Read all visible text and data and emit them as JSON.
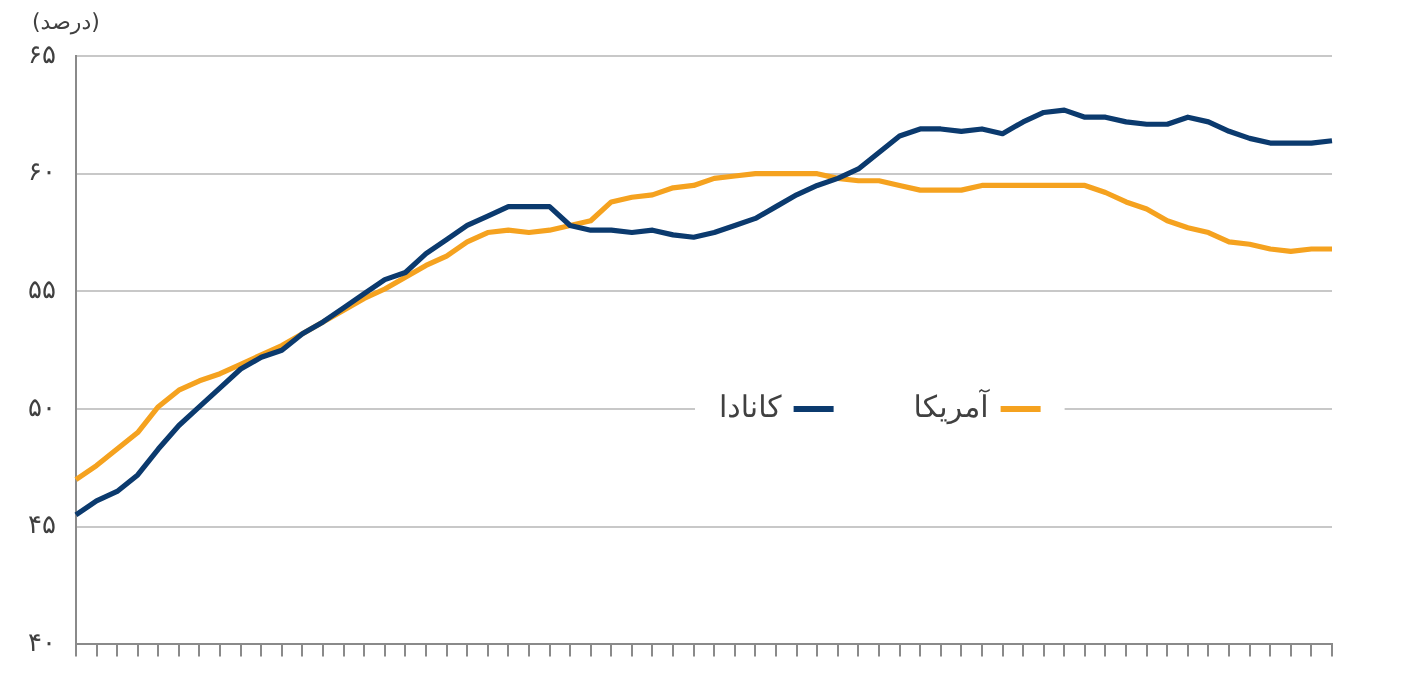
{
  "chart_data": {
    "type": "line",
    "ylabel": "(درصد)",
    "categories": [
      null,
      null,
      null,
      null,
      null,
      null,
      null,
      null,
      null,
      null,
      null,
      null,
      null,
      null,
      null,
      null,
      null,
      null,
      null,
      null,
      null,
      null,
      null,
      null,
      null,
      null,
      null,
      null,
      null,
      null,
      null,
      null,
      null,
      null,
      null,
      null,
      null,
      null,
      null,
      null,
      null,
      null,
      null,
      null,
      null,
      null,
      null,
      null,
      null,
      null,
      null,
      null,
      null,
      null,
      null,
      null,
      null,
      null,
      null,
      null,
      null,
      null
    ],
    "series": [
      {
        "name": "کانادا",
        "color": "#0b3a6e",
        "values": [
          45.5,
          46.1,
          46.5,
          47.2,
          48.3,
          49.3,
          50.1,
          50.9,
          51.7,
          52.2,
          52.5,
          53.2,
          53.7,
          54.3,
          54.9,
          55.5,
          55.8,
          56.6,
          57.2,
          57.8,
          58.2,
          58.6,
          58.6,
          58.6,
          57.8,
          57.6,
          57.6,
          57.5,
          57.6,
          57.4,
          57.3,
          57.5,
          57.8,
          58.1,
          58.6,
          59.1,
          59.5,
          59.8,
          60.2,
          60.9,
          61.6,
          61.9,
          61.9,
          61.8,
          61.9,
          61.7,
          62.2,
          62.6,
          62.7,
          62.4,
          62.4,
          62.2,
          62.1,
          62.1,
          62.4,
          62.2,
          61.8,
          61.5,
          61.3,
          61.3,
          61.3,
          61.4
        ]
      },
      {
        "name": "آمریکا",
        "color": "#f5a21f",
        "values": [
          47.0,
          47.6,
          48.3,
          49.0,
          50.1,
          50.8,
          51.2,
          51.5,
          51.9,
          52.3,
          52.7,
          53.2,
          53.7,
          54.2,
          54.7,
          55.1,
          55.6,
          56.1,
          56.5,
          57.1,
          57.5,
          57.6,
          57.5,
          57.6,
          57.8,
          58.0,
          58.8,
          59.0,
          59.1,
          59.4,
          59.5,
          59.8,
          59.9,
          60.0,
          60.0,
          60.0,
          60.0,
          59.8,
          59.7,
          59.7,
          59.5,
          59.3,
          59.3,
          59.3,
          59.5,
          59.5,
          59.5,
          59.5,
          59.5,
          59.5,
          59.2,
          58.8,
          58.5,
          58.0,
          57.7,
          57.5,
          57.1,
          57.0,
          56.8,
          56.7,
          56.8,
          56.8
        ]
      }
    ],
    "ylim": [
      40,
      65
    ],
    "yticks": [
      {
        "value": 40,
        "label": "۴۰"
      },
      {
        "value": 45,
        "label": "۴۵"
      },
      {
        "value": 50,
        "label": "۵۰"
      },
      {
        "value": 55,
        "label": "۵۵"
      },
      {
        "value": 60,
        "label": "۶۰"
      },
      {
        "value": 65,
        "label": "۶۵"
      }
    ],
    "grid": "y",
    "tick_labels": "y",
    "legend": "right",
    "marker": "none",
    "line_style": "solid"
  }
}
